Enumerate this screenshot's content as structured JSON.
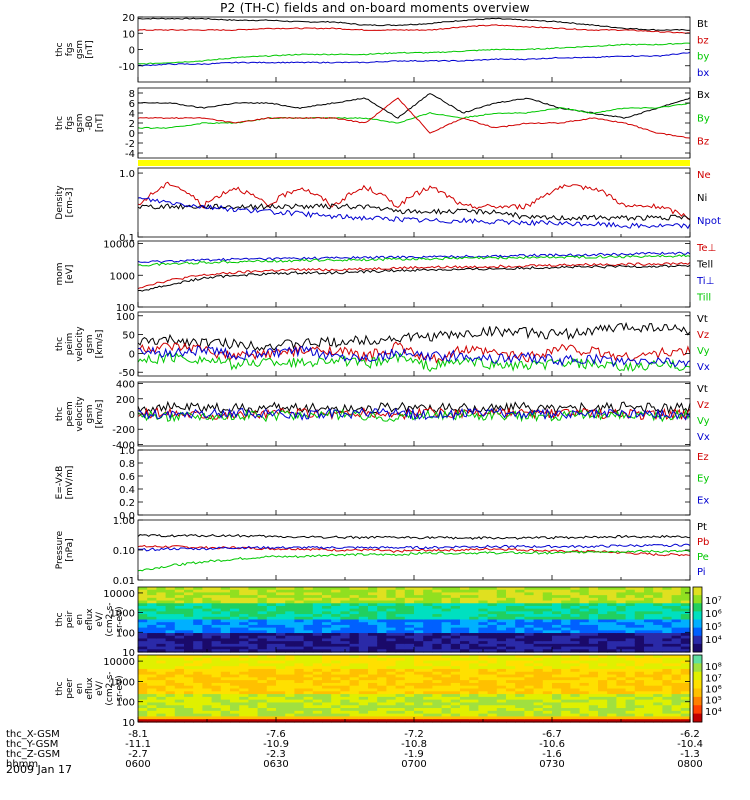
{
  "title": "P2 (TH-C) fields and on-board moments overview",
  "date": "2009 Jan 17",
  "colors": {
    "black": "#000000",
    "red": "#d00000",
    "green": "#00c800",
    "blue": "#0000d0",
    "yellow": "#ffff00"
  },
  "chart_data": [
    {
      "type": "line",
      "ylabel": [
        "thc",
        "fgs",
        "gsm",
        "[nT]"
      ],
      "ylim": [
        -20,
        20
      ],
      "yticks": [
        "-10",
        "0",
        "10",
        "20"
      ],
      "series": [
        {
          "name": "Bt",
          "color": "black",
          "values": [
            19,
            19,
            19,
            18,
            18,
            17,
            17,
            15,
            15,
            16,
            18,
            19,
            18,
            17,
            15,
            13,
            12,
            12
          ]
        },
        {
          "name": "bz",
          "color": "red",
          "values": [
            12,
            12,
            12,
            12,
            13,
            13,
            13,
            12,
            12,
            12,
            14,
            15,
            14,
            13,
            12,
            12,
            11,
            10
          ]
        },
        {
          "name": "by",
          "color": "green",
          "values": [
            -9,
            -8,
            -7,
            -5,
            -4,
            -3,
            -3,
            -3,
            -2,
            -2,
            -1,
            0,
            0,
            1,
            2,
            3,
            3,
            4
          ]
        },
        {
          "name": "bx",
          "color": "blue",
          "values": [
            -10,
            -9,
            -9,
            -8,
            -8,
            -8,
            -8,
            -8,
            -7,
            -7,
            -7,
            -6,
            -6,
            -5,
            -5,
            -4,
            -4,
            -2
          ]
        }
      ]
    },
    {
      "type": "line",
      "ylabel": [
        "thc",
        "fgs",
        "gsm",
        "-B0",
        "[nT]"
      ],
      "ylim": [
        -5,
        9
      ],
      "yticks": [
        "-4",
        "-2",
        "0",
        "2",
        "4",
        "6",
        "8"
      ],
      "series": [
        {
          "name": "Bx",
          "color": "black",
          "values": [
            6,
            6,
            5,
            6,
            6,
            5,
            6,
            7,
            3,
            8,
            4,
            6,
            7,
            5,
            4,
            3,
            5,
            7
          ]
        },
        {
          "name": "By",
          "color": "green",
          "values": [
            1,
            1,
            2,
            2,
            3,
            3,
            3,
            3,
            2,
            4,
            3,
            4,
            4,
            5,
            4,
            5,
            5,
            6
          ]
        },
        {
          "name": "Bz",
          "color": "red",
          "values": [
            3,
            3,
            3,
            2,
            3,
            3,
            3,
            2,
            7,
            0,
            3,
            1,
            2,
            2,
            3,
            2,
            0,
            -1
          ]
        }
      ]
    },
    {
      "type": "line",
      "ylabel": [
        "Density",
        "[cm-3]"
      ],
      "ylim": [
        0.1,
        1.2
      ],
      "yscale": "log",
      "yticks": [
        "0.1",
        "1.0"
      ],
      "series": [
        {
          "name": "Ne",
          "color": "red",
          "values": [
            0.3,
            0.7,
            0.3,
            0.6,
            0.3,
            0.6,
            0.3,
            0.6,
            0.3,
            0.6,
            0.3,
            0.3,
            0.3,
            0.6,
            0.6,
            0.3,
            0.3,
            0.2
          ]
        },
        {
          "name": "Ni",
          "color": "black",
          "values": [
            0.3,
            0.3,
            0.3,
            0.3,
            0.3,
            0.3,
            0.3,
            0.3,
            0.25,
            0.25,
            0.25,
            0.25,
            0.2,
            0.2,
            0.2,
            0.2,
            0.2,
            0.2
          ]
        },
        {
          "name": "Npot",
          "color": "blue",
          "values": [
            0.4,
            0.35,
            0.3,
            0.27,
            0.25,
            0.23,
            0.21,
            0.2,
            0.19,
            0.18,
            0.18,
            0.17,
            0.17,
            0.16,
            0.16,
            0.15,
            0.15,
            0.15
          ]
        }
      ]
    },
    {
      "type": "line",
      "ylabel": [
        "mom",
        "[eV]"
      ],
      "ylim": [
        100,
        12000
      ],
      "yscale": "log",
      "yticks": [
        "100",
        "1000",
        "10000"
      ],
      "series": [
        {
          "name": "Te⊥",
          "color": "red",
          "values": [
            400,
            700,
            1000,
            1200,
            1400,
            1500,
            1500,
            1600,
            1700,
            1800,
            1800,
            1900,
            2000,
            2100,
            2200,
            2200,
            2300,
            2400
          ]
        },
        {
          "name": "Tell",
          "color": "black",
          "values": [
            300,
            500,
            800,
            1000,
            1100,
            1200,
            1200,
            1300,
            1400,
            1500,
            1500,
            1600,
            1700,
            1800,
            1800,
            1900,
            1900,
            2000
          ]
        },
        {
          "name": "Ti⊥",
          "color": "blue",
          "values": [
            2500,
            2800,
            3000,
            3200,
            3300,
            3400,
            3500,
            3600,
            3700,
            3800,
            3900,
            4000,
            4200,
            4300,
            4500,
            4700,
            4900,
            5000
          ]
        },
        {
          "name": "Till",
          "color": "green",
          "values": [
            2000,
            2300,
            2500,
            2700,
            2800,
            2900,
            3000,
            3100,
            3200,
            3300,
            3400,
            3500,
            3600,
            3700,
            3800,
            3900,
            4000,
            4100
          ]
        }
      ]
    },
    {
      "type": "line",
      "ylabel": [
        "thc",
        "peim",
        "velocity",
        "gsm",
        "[km/s]"
      ],
      "ylim": [
        -60,
        110
      ],
      "yticks": [
        "-50",
        "0",
        "50",
        "100"
      ],
      "series": [
        {
          "name": "Vt",
          "color": "black",
          "values": [
            30,
            35,
            30,
            25,
            20,
            25,
            30,
            35,
            40,
            45,
            50,
            60,
            55,
            50,
            60,
            70,
            70,
            60
          ]
        },
        {
          "name": "Vz",
          "color": "red",
          "values": [
            10,
            15,
            10,
            -10,
            0,
            5,
            10,
            -10,
            20,
            -20,
            10,
            0,
            -10,
            15,
            5,
            -10,
            0,
            5
          ]
        },
        {
          "name": "Vy",
          "color": "green",
          "values": [
            -20,
            -10,
            -15,
            -30,
            -20,
            -25,
            -15,
            -30,
            -10,
            -35,
            -20,
            -30,
            -35,
            -25,
            -30,
            -40,
            -30,
            -35
          ]
        },
        {
          "name": "Vx",
          "color": "blue",
          "values": [
            5,
            0,
            10,
            -5,
            0,
            5,
            -5,
            -10,
            0,
            -10,
            -5,
            -15,
            -10,
            -20,
            -15,
            -25,
            -20,
            -25
          ]
        }
      ]
    },
    {
      "type": "line",
      "ylabel": [
        "thc",
        "peem",
        "velocity",
        "gsm",
        "[km/s]"
      ],
      "ylim": [
        -420,
        420
      ],
      "yticks": [
        "-400",
        "-200",
        "0",
        "200",
        "400"
      ],
      "series": [
        {
          "name": "Vt",
          "color": "black",
          "values": [
            80,
            90,
            80,
            70,
            80,
            90,
            70,
            80,
            90,
            80,
            70,
            80,
            90,
            70,
            80,
            90,
            70,
            80
          ]
        },
        {
          "name": "Vz",
          "color": "red",
          "values": [
            10,
            20,
            0,
            -10,
            10,
            20,
            0,
            10,
            -10,
            20,
            0,
            10,
            -10,
            0,
            10,
            0,
            -10,
            0
          ]
        },
        {
          "name": "Vy",
          "color": "green",
          "values": [
            -20,
            -30,
            -10,
            -20,
            -30,
            -20,
            -10,
            -20,
            -30,
            -20,
            -10,
            -20,
            -30,
            -20,
            -10,
            -20,
            -30,
            -20
          ]
        },
        {
          "name": "Vx",
          "color": "blue",
          "values": [
            0,
            -10,
            0,
            10,
            0,
            -10,
            0,
            10,
            0,
            -10,
            0,
            10,
            0,
            -10,
            0,
            10,
            0,
            -10
          ]
        }
      ]
    },
    {
      "type": "line",
      "ylabel": [
        "E=-VxB",
        "[mV/m]"
      ],
      "ylim": [
        0,
        1.0
      ],
      "yticks": [
        "0.0",
        "0.2",
        "0.4",
        "0.6",
        "0.8",
        "1.0"
      ],
      "series": [
        {
          "name": "Ez",
          "color": "red",
          "values": []
        },
        {
          "name": "Ey",
          "color": "green",
          "values": []
        },
        {
          "name": "Ex",
          "color": "blue",
          "values": []
        }
      ]
    },
    {
      "type": "line",
      "ylabel": [
        "Pressure",
        "[nPa]"
      ],
      "ylim": [
        0.01,
        1.0
      ],
      "yscale": "log",
      "yticks": [
        "0.01",
        "0.10",
        "1.00"
      ],
      "series": [
        {
          "name": "Pt",
          "color": "black",
          "values": [
            0.3,
            0.3,
            0.3,
            0.3,
            0.28,
            0.27,
            0.27,
            0.26,
            0.26,
            0.26,
            0.25,
            0.25,
            0.25,
            0.26,
            0.27,
            0.28,
            0.28,
            0.28
          ]
        },
        {
          "name": "Pb",
          "color": "red",
          "values": [
            0.13,
            0.13,
            0.12,
            0.12,
            0.11,
            0.11,
            0.1,
            0.1,
            0.09,
            0.1,
            0.1,
            0.11,
            0.1,
            0.09,
            0.09,
            0.08,
            0.07,
            0.07
          ]
        },
        {
          "name": "Pe",
          "color": "green",
          "values": [
            0.02,
            0.03,
            0.04,
            0.05,
            0.06,
            0.06,
            0.07,
            0.07,
            0.07,
            0.08,
            0.08,
            0.08,
            0.08,
            0.08,
            0.09,
            0.09,
            0.09,
            0.09
          ]
        },
        {
          "name": "Pi",
          "color": "blue",
          "values": [
            0.1,
            0.11,
            0.11,
            0.12,
            0.12,
            0.12,
            0.12,
            0.12,
            0.12,
            0.12,
            0.13,
            0.13,
            0.13,
            0.13,
            0.13,
            0.14,
            0.14,
            0.15
          ]
        }
      ]
    },
    {
      "type": "heatmap",
      "ylabel": [
        "thc",
        "peir",
        "en",
        "eflux",
        "eV/",
        "(cm2-s-",
        "sr-eV)"
      ],
      "ylim": [
        10,
        20000
      ],
      "yscale": "log",
      "yticks": [
        "10",
        "100",
        "1000",
        "10000"
      ],
      "colorbar": {
        "min": "10³",
        "max": "10⁷",
        "ticks": [
          "10⁴",
          "10⁵",
          "10⁶",
          "10⁷"
        ]
      }
    },
    {
      "type": "heatmap",
      "ylabel": [
        "thc",
        "peer",
        "en",
        "eflux",
        "eV/",
        "(cm2-s-",
        "sr-eV)"
      ],
      "ylim": [
        10,
        20000
      ],
      "yscale": "log",
      "yticks": [
        "10",
        "100",
        "1000",
        "10000"
      ],
      "colorbar": {
        "min": "10³",
        "max": "10⁸",
        "ticks": [
          "10⁴",
          "10⁵",
          "10⁶",
          "10⁷",
          "10⁸"
        ]
      }
    }
  ],
  "xaxis": {
    "rows": [
      {
        "label": "thc_X-GSM",
        "values": [
          "-8.1",
          "-7.6",
          "-7.2",
          "-6.7",
          "-6.2"
        ]
      },
      {
        "label": "thc_Y-GSM",
        "values": [
          "-11.1",
          "-10.9",
          "-10.8",
          "-10.6",
          "-10.4"
        ]
      },
      {
        "label": "thc_Z-GSM",
        "values": [
          "-2.7",
          "-2.3",
          "-1.9",
          "-1.6",
          "-1.3"
        ]
      },
      {
        "label": "hhmm",
        "values": [
          "0600",
          "0630",
          "0700",
          "0730",
          "0800"
        ]
      }
    ]
  }
}
